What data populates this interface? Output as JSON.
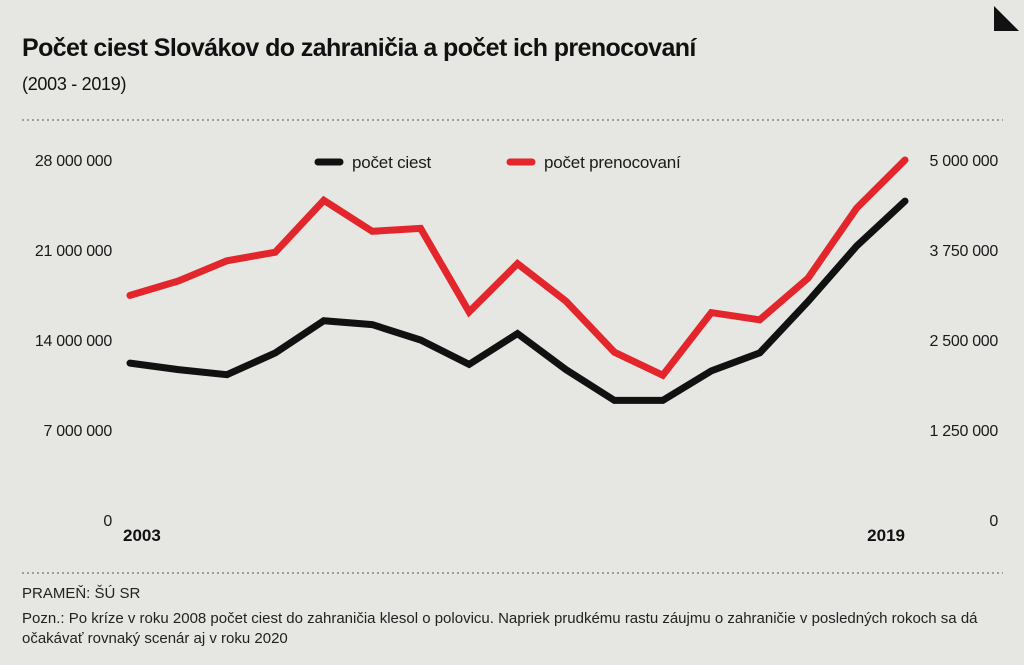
{
  "header": {
    "title": "Počet ciest Slovákov do zahraničia a počet ich prenocovaní",
    "subtitle": "(2003 - 2019)"
  },
  "footer": {
    "source": "PRAMEŇ: ŠÚ SR",
    "note": "Pozn.: Po kríze v roku 2008 počet ciest do zahraničia klesol o polovicu. Napriek prudkému rastu záujmu o zahraničie v posledných rokoch sa dá očakávať rovnaký scenár aj v roku 2020"
  },
  "chart_data": {
    "type": "line",
    "title": "Počet ciest Slovákov do zahraničia a počet ich prenocovaní",
    "subtitle": "(2003 - 2019)",
    "x": [
      2003,
      2004,
      2005,
      2006,
      2007,
      2008,
      2009,
      2010,
      2011,
      2012,
      2013,
      2014,
      2015,
      2016,
      2017,
      2018,
      2019
    ],
    "x_tick_labels": [
      {
        "x": 2003,
        "label": "2003"
      },
      {
        "x": 2019,
        "label": "2019"
      }
    ],
    "series": [
      {
        "name": "počet ciest",
        "color": "#111111",
        "axis": "left",
        "values": [
          12200000,
          11700000,
          11300000,
          13000000,
          15500000,
          15200000,
          14000000,
          12100000,
          14500000,
          11700000,
          9300000,
          9300000,
          11600000,
          13000000,
          17000000,
          21300000,
          24800000
        ]
      },
      {
        "name": "počet prenocovaní",
        "color": "#e3262b",
        "axis": "right",
        "values": [
          3120000,
          3320000,
          3600000,
          3720000,
          4440000,
          4010000,
          4050000,
          2890000,
          3560000,
          3040000,
          2330000,
          2010000,
          2880000,
          2780000,
          3360000,
          4330000,
          5000000
        ]
      }
    ],
    "y_left": {
      "range": [
        0,
        28000000
      ],
      "ticks": [
        0,
        7000000,
        14000000,
        21000000,
        28000000
      ],
      "tick_labels": [
        "0",
        "7 000 000",
        "14 000 000",
        "21 000 000",
        "28 000 000"
      ]
    },
    "y_right": {
      "range": [
        0,
        5000000
      ],
      "ticks": [
        0,
        1250000,
        2500000,
        3750000,
        5000000
      ],
      "tick_labels": [
        "0",
        "1 250 000",
        "2 500 000",
        "3 750 000",
        "5 000 000"
      ]
    },
    "grid": false,
    "legend_position": "top-center"
  }
}
